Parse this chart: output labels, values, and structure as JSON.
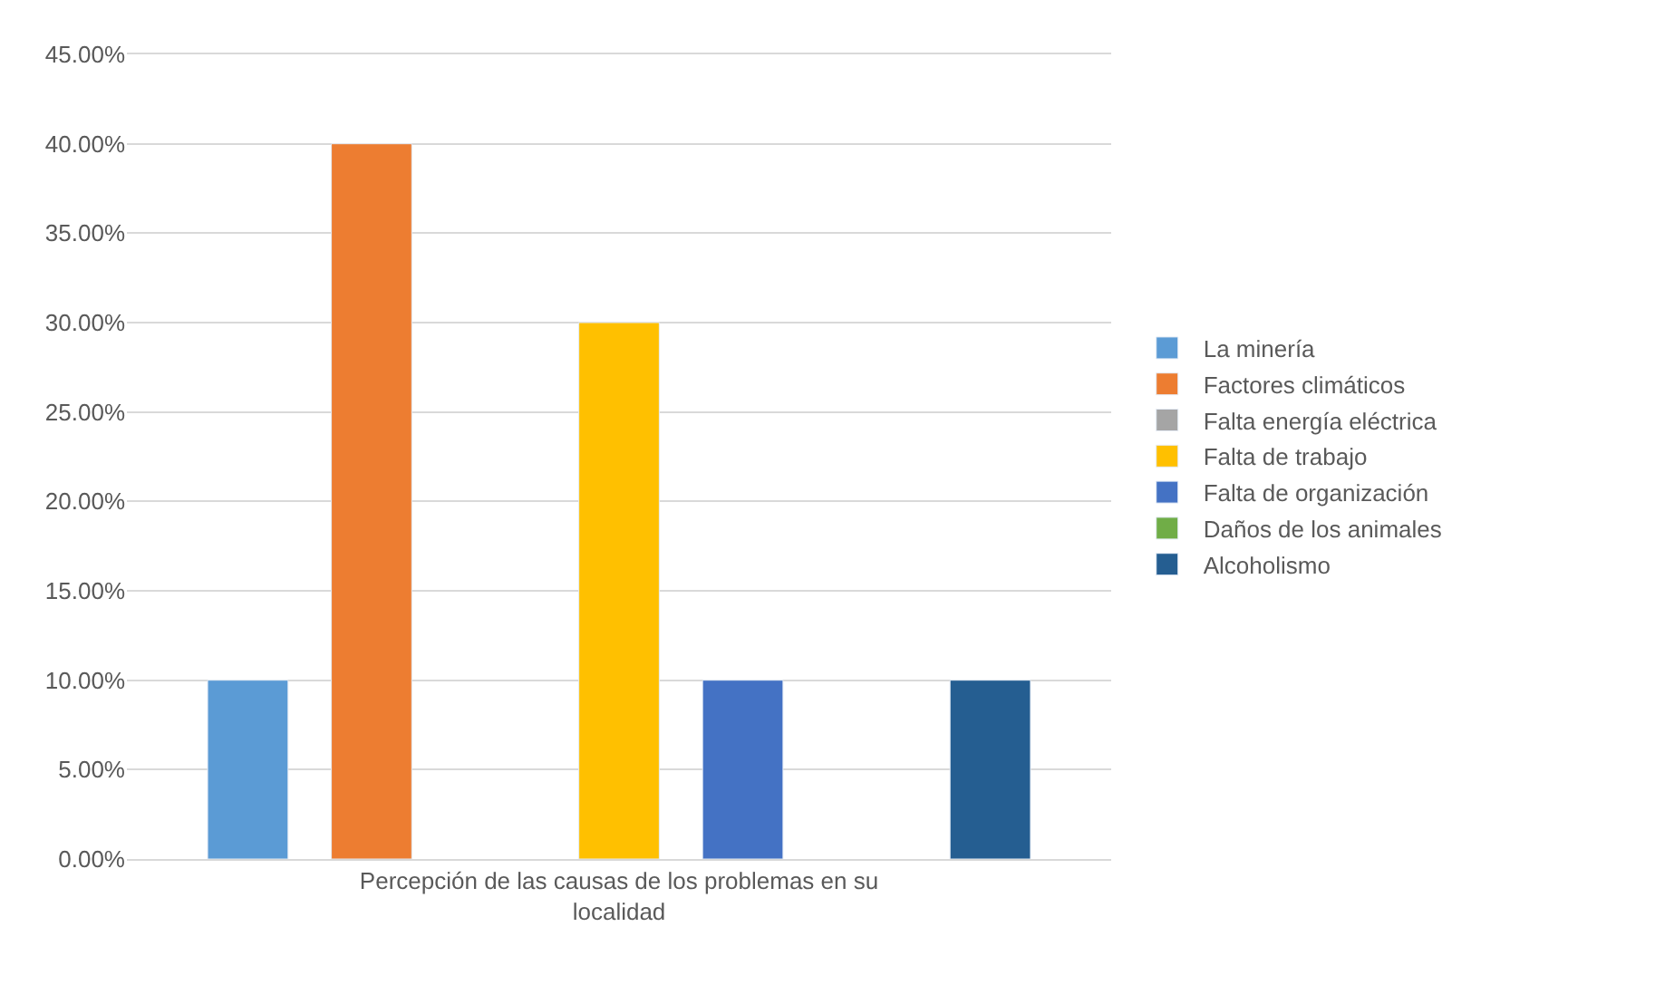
{
  "chart_data": {
    "type": "bar",
    "categories": [
      "Percepción de las causas de los problemas en su localidad"
    ],
    "series": [
      {
        "name": "La minería",
        "color": "#5b9bd5",
        "values": [
          10
        ]
      },
      {
        "name": "Factores climáticos",
        "color": "#ed7d31",
        "values": [
          40
        ]
      },
      {
        "name": "Falta energía eléctrica",
        "color": "#a5a5a5",
        "values": [
          null
        ]
      },
      {
        "name": "Falta de trabajo",
        "color": "#ffc000",
        "values": [
          30
        ]
      },
      {
        "name": "Falta de organización",
        "color": "#4472c4",
        "values": [
          10
        ]
      },
      {
        "name": "Daños de los animales",
        "color": "#70ad47",
        "values": [
          null
        ]
      },
      {
        "name": "Alcoholismo",
        "color": "#255e91",
        "values": [
          10
        ]
      }
    ],
    "ylim": [
      0,
      45
    ],
    "yticks": [
      {
        "value": 0,
        "label": "0.00%"
      },
      {
        "value": 5,
        "label": "5.00%"
      },
      {
        "value": 10,
        "label": "10.00%"
      },
      {
        "value": 15,
        "label": "15.00%"
      },
      {
        "value": 20,
        "label": "20.00%"
      },
      {
        "value": 25,
        "label": "25.00%"
      },
      {
        "value": 30,
        "label": "30.00%"
      },
      {
        "value": 35,
        "label": "35.00%"
      },
      {
        "value": 40,
        "label": "40.00%"
      },
      {
        "value": 45,
        "label": "45.00%"
      }
    ],
    "grid": "y",
    "legend": "right"
  }
}
